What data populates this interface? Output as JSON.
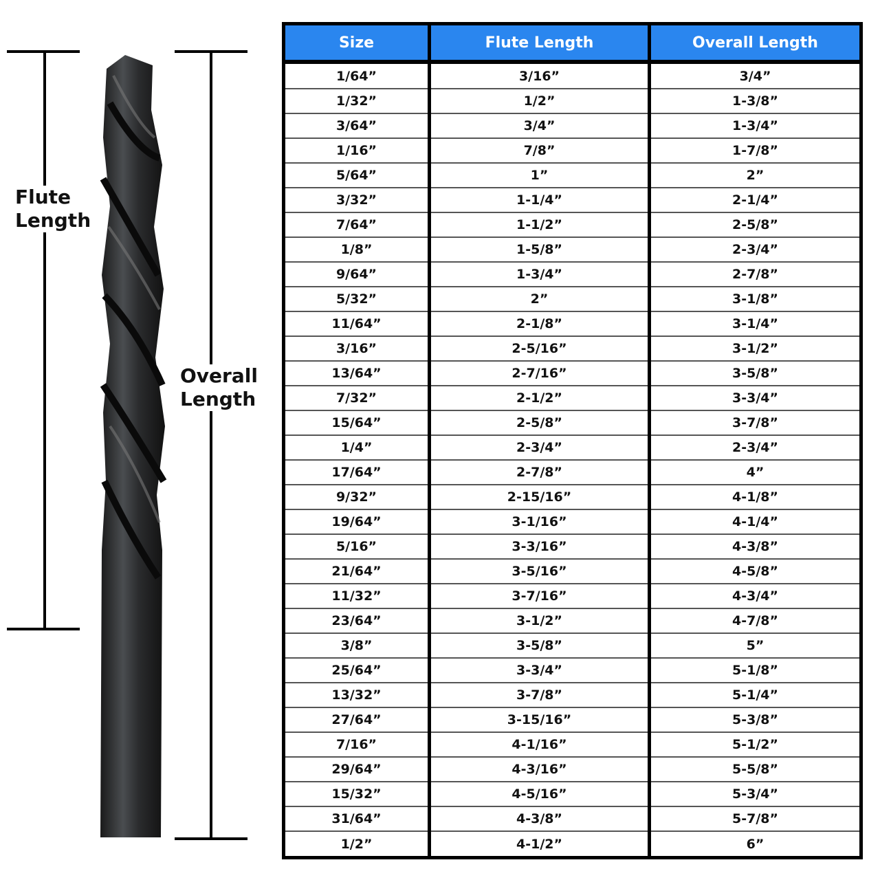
{
  "labels": {
    "flute_length": "Flute Length",
    "overall_length": "Overall Length"
  },
  "table": {
    "headers": [
      "Size",
      "Flute Length",
      "Overall Length"
    ],
    "rows": [
      [
        "1/64”",
        "3/16”",
        "3/4”"
      ],
      [
        "1/32”",
        "1/2”",
        "1-3/8”"
      ],
      [
        "3/64”",
        "3/4”",
        "1-3/4”"
      ],
      [
        "1/16”",
        "7/8”",
        "1-7/8”"
      ],
      [
        "5/64”",
        "1”",
        "2”"
      ],
      [
        "3/32”",
        "1-1/4”",
        "2-1/4”"
      ],
      [
        "7/64”",
        "1-1/2”",
        "2-5/8”"
      ],
      [
        "1/8”",
        "1-5/8”",
        "2-3/4”"
      ],
      [
        "9/64”",
        "1-3/4”",
        "2-7/8”"
      ],
      [
        "5/32”",
        "2”",
        "3-1/8”"
      ],
      [
        "11/64”",
        "2-1/8”",
        "3-1/4”"
      ],
      [
        "3/16”",
        "2-5/16”",
        "3-1/2”"
      ],
      [
        "13/64”",
        "2-7/16”",
        "3-5/8”"
      ],
      [
        "7/32”",
        "2-1/2”",
        "3-3/4”"
      ],
      [
        "15/64”",
        "2-5/8”",
        "3-7/8”"
      ],
      [
        "1/4”",
        "2-3/4”",
        "2-3/4”"
      ],
      [
        "17/64”",
        "2-7/8”",
        "4”"
      ],
      [
        "9/32”",
        "2-15/16”",
        "4-1/8”"
      ],
      [
        "19/64”",
        "3-1/16”",
        "4-1/4”"
      ],
      [
        "5/16”",
        "3-3/16”",
        "4-3/8”"
      ],
      [
        "21/64”",
        "3-5/16”",
        "4-5/8”"
      ],
      [
        "11/32”",
        "3-7/16”",
        "4-3/4”"
      ],
      [
        "23/64”",
        "3-1/2”",
        "4-7/8”"
      ],
      [
        "3/8”",
        "3-5/8”",
        "5”"
      ],
      [
        "25/64”",
        "3-3/4”",
        "5-1/8”"
      ],
      [
        "13/32”",
        "3-7/8”",
        "5-1/4”"
      ],
      [
        "27/64”",
        "3-15/16”",
        "5-3/8”"
      ],
      [
        "7/16”",
        "4-1/16”",
        "5-1/2”"
      ],
      [
        "29/64”",
        "4-3/16”",
        "5-5/8”"
      ],
      [
        "15/32”",
        "4-5/16”",
        "5-3/4”"
      ],
      [
        "31/64”",
        "4-3/8”",
        "5-7/8”"
      ],
      [
        "1/2”",
        "4-1/2”",
        "6”"
      ]
    ]
  }
}
